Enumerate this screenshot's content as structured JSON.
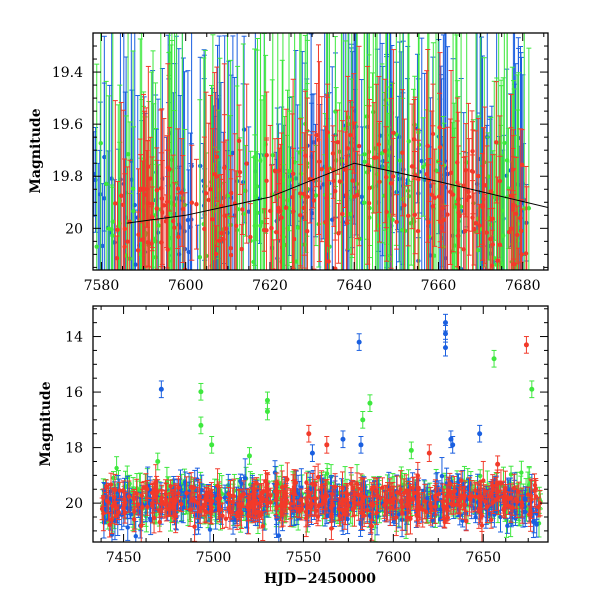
{
  "chart_data": [
    {
      "type": "scatter",
      "panel": "top",
      "ylabel": "Magnitude",
      "xlabel": "",
      "xlim": [
        7578,
        7686
      ],
      "ylim": [
        20.16,
        19.25
      ],
      "y_inverted": true,
      "xticks": [
        7580,
        7600,
        7620,
        7640,
        7660,
        7680
      ],
      "yticks": [
        19.4,
        19.6,
        19.8,
        20
      ],
      "ytick_labels": [
        "19.4",
        "19.6",
        "19.8",
        "20"
      ],
      "grid": false,
      "colors": {
        "blue": "#1a5fe0",
        "green": "#3ee83e",
        "red": "#f23a2a"
      },
      "series": [
        {
          "color": "blue",
          "x_range": [
            7578,
            7682
          ],
          "y_center": 19.85,
          "error_typical": 0.35,
          "density": "high"
        },
        {
          "color": "green",
          "x_range": [
            7578,
            7682
          ],
          "y_center": 19.85,
          "error_typical": 0.4,
          "density": "high"
        },
        {
          "color": "red",
          "x_range": [
            7583,
            7682
          ],
          "y_center": 19.78,
          "error_typical": 0.2,
          "density": "high"
        }
      ],
      "trend_line": {
        "x": [
          7586,
          7600,
          7620,
          7640,
          7660,
          7686
        ],
        "y": [
          19.98,
          19.95,
          19.88,
          19.75,
          19.82,
          19.92
        ]
      }
    },
    {
      "type": "scatter",
      "panel": "bottom",
      "ylabel": "Magnitude",
      "xlabel": "HJD−2450000",
      "xlim": [
        7433,
        7686
      ],
      "ylim": [
        21.4,
        12.9
      ],
      "y_inverted": true,
      "xticks": [
        7450,
        7500,
        7550,
        7600,
        7650
      ],
      "yticks": [
        14,
        16,
        18,
        20
      ],
      "ytick_labels": [
        "14",
        "16",
        "18",
        "20"
      ],
      "grid": false,
      "colors": {
        "blue": "#1a5fe0",
        "green": "#3ee83e",
        "red": "#f23a2a"
      },
      "series": [
        {
          "color": "blue",
          "x_range": [
            7438,
            7682
          ],
          "y_center": 20.0,
          "density": "high"
        },
        {
          "color": "green",
          "x_range": [
            7438,
            7682
          ],
          "y_center": 19.9,
          "density": "high"
        },
        {
          "color": "red",
          "x_range": [
            7438,
            7682
          ],
          "y_center": 19.95,
          "density": "high"
        }
      ],
      "outliers": [
        {
          "color": "blue",
          "x": 7471,
          "y": 15.9
        },
        {
          "color": "blue",
          "x": 7581,
          "y": 14.2
        },
        {
          "color": "blue",
          "x": 7629,
          "y": 13.9
        },
        {
          "color": "blue",
          "x": 7629,
          "y": 14.4
        },
        {
          "color": "blue",
          "x": 7629,
          "y": 13.5
        },
        {
          "color": "blue",
          "x": 7648,
          "y": 17.5
        },
        {
          "color": "blue",
          "x": 7632,
          "y": 17.7
        },
        {
          "color": "blue",
          "x": 7633,
          "y": 17.9
        },
        {
          "color": "blue",
          "x": 7572,
          "y": 17.7
        },
        {
          "color": "blue",
          "x": 7555,
          "y": 18.2
        },
        {
          "color": "blue",
          "x": 7582,
          "y": 17.9
        },
        {
          "color": "green",
          "x": 7493,
          "y": 15.99
        },
        {
          "color": "green",
          "x": 7493,
          "y": 17.2
        },
        {
          "color": "green",
          "x": 7530,
          "y": 16.3
        },
        {
          "color": "green",
          "x": 7530,
          "y": 16.7
        },
        {
          "color": "green",
          "x": 7587,
          "y": 16.4
        },
        {
          "color": "green",
          "x": 7656,
          "y": 14.8
        },
        {
          "color": "green",
          "x": 7677,
          "y": 15.9
        },
        {
          "color": "green",
          "x": 7583,
          "y": 17.0
        },
        {
          "color": "green",
          "x": 7499,
          "y": 17.9
        },
        {
          "color": "green",
          "x": 7469,
          "y": 18.5
        },
        {
          "color": "green",
          "x": 7520,
          "y": 18.3
        },
        {
          "color": "green",
          "x": 7610,
          "y": 18.1
        },
        {
          "color": "red",
          "x": 7674,
          "y": 14.3
        },
        {
          "color": "red",
          "x": 7553,
          "y": 17.5
        },
        {
          "color": "red",
          "x": 7563,
          "y": 17.9
        },
        {
          "color": "red",
          "x": 7620,
          "y": 18.2
        },
        {
          "color": "red",
          "x": 7658,
          "y": 18.6
        }
      ]
    }
  ]
}
